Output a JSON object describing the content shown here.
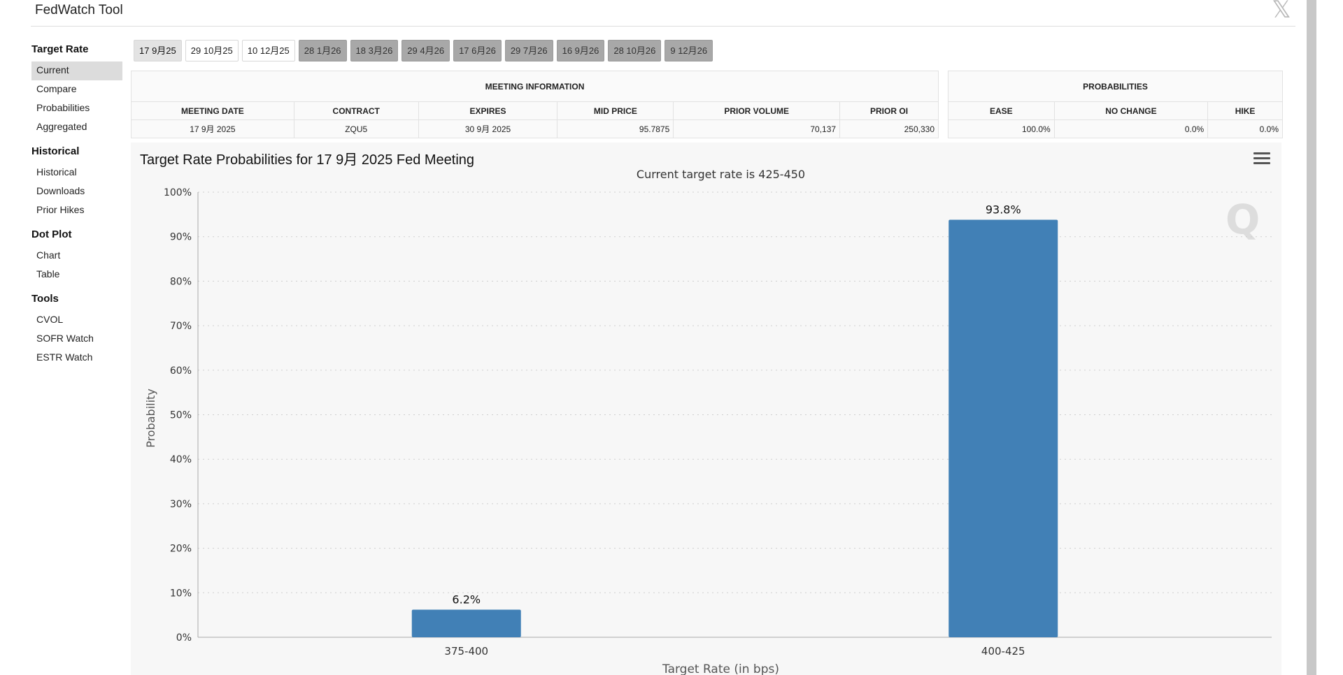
{
  "header": {
    "title": "FedWatch Tool",
    "close_icon": "x-logo-icon"
  },
  "sidebar": {
    "sections": [
      {
        "title": "Target Rate",
        "items": [
          "Current",
          "Compare",
          "Probabilities",
          "Aggregated"
        ],
        "active": 0
      },
      {
        "title": "Historical",
        "items": [
          "Historical",
          "Downloads",
          "Prior Hikes"
        ]
      },
      {
        "title": "Dot Plot",
        "items": [
          "Chart",
          "Table"
        ]
      },
      {
        "title": "Tools",
        "items": [
          "CVOL",
          "SOFR Watch",
          "ESTR Watch"
        ]
      }
    ]
  },
  "tabs": [
    {
      "label": "17 9月25",
      "style": "active"
    },
    {
      "label": "29 10月25",
      "style": "plain"
    },
    {
      "label": "10 12月25",
      "style": "plain"
    },
    {
      "label": "28 1月26",
      "style": "dark"
    },
    {
      "label": "18 3月26",
      "style": "dark"
    },
    {
      "label": "29 4月26",
      "style": "dark"
    },
    {
      "label": "17 6月26",
      "style": "dark"
    },
    {
      "label": "29 7月26",
      "style": "dark"
    },
    {
      "label": "16 9月26",
      "style": "dark"
    },
    {
      "label": "28 10月26",
      "style": "dark"
    },
    {
      "label": "9 12月26",
      "style": "dark"
    }
  ],
  "meeting_info": {
    "title": "MEETING INFORMATION",
    "headers": [
      "MEETING DATE",
      "CONTRACT",
      "EXPIRES",
      "MID PRICE",
      "PRIOR VOLUME",
      "PRIOR OI"
    ],
    "row": [
      "17 9月 2025",
      "ZQU5",
      "30 9月 2025",
      "95.7875",
      "70,137",
      "250,330"
    ]
  },
  "probabilities": {
    "title": "PROBABILITIES",
    "headers": [
      "EASE",
      "NO CHANGE",
      "HIKE"
    ],
    "row": [
      "100.0%",
      "0.0%",
      "0.0%"
    ]
  },
  "chart": {
    "title": "Target Rate Probabilities for 17 9月 2025 Fed Meeting",
    "menu_icon": "hamburger-menu-icon",
    "watermark": "Q"
  },
  "chart_data": {
    "type": "bar",
    "subtitle": "Current target rate is 425-450",
    "categories": [
      "375-400",
      "400-425"
    ],
    "values": [
      6.2,
      93.8
    ],
    "value_labels": [
      "6.2%",
      "93.8%"
    ],
    "xlabel": "Target Rate (in bps)",
    "ylabel": "Probability",
    "ylim": [
      0,
      100
    ],
    "yticks": [
      "0%",
      "10%",
      "20%",
      "30%",
      "40%",
      "50%",
      "60%",
      "70%",
      "80%",
      "90%",
      "100%"
    ],
    "grid": true,
    "bar_color": "#4180b6"
  }
}
